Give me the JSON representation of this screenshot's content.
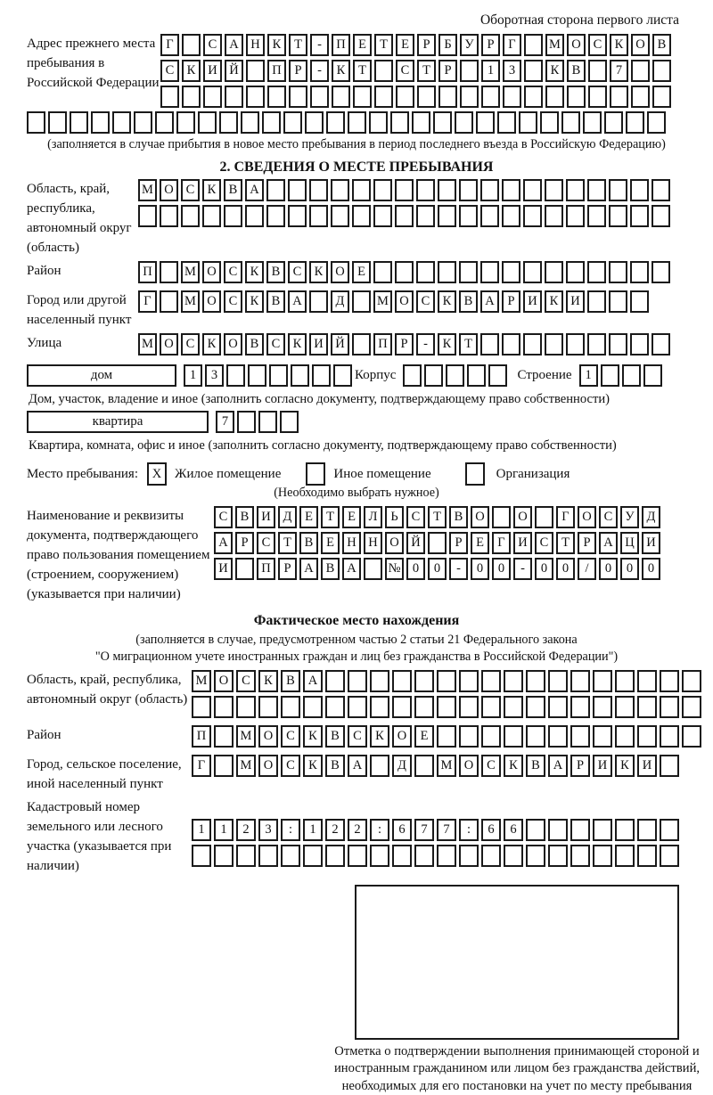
{
  "header": {
    "note": "Оборотная сторона первого листа"
  },
  "prev_address": {
    "label": "Адрес прежнего места пребывания в Российской Федерации",
    "row1": "Г САНКТ-ПЕТЕРБУРГ МОСКОВ",
    "row2": "СКИЙ ПР-КТ СТР 13 КВ 7  ",
    "row3": "                        ",
    "row4": "                              ",
    "note": "(заполняется в случае прибытия в новое место пребывания в период последнего въезда в Российскую Федерацию)"
  },
  "section2": {
    "title": "2. СВЕДЕНИЯ О МЕСТЕ ПРЕБЫВАНИЯ",
    "oblast": {
      "label": "Область, край, республика, автономный округ (область)",
      "row1": "МОСКВА                   ",
      "row2": "                         "
    },
    "raion": {
      "label": "Район",
      "row": "П МОСКВСКОЕ              "
    },
    "gorod": {
      "label": "Город или другой населенный пункт",
      "row": "Г МОСКВА Д МОСКВАРИКИ   "
    },
    "ulitsa": {
      "label": "Улица",
      "row": "МОСКОВСКИЙ ПР-КТ         "
    },
    "dom": {
      "label": "дом",
      "cells": "13      ",
      "korpus_label": "Корпус",
      "korpus_cells": "     ",
      "stroenie_label": "Строение",
      "stroenie_cells": "1   ",
      "note": "Дом, участок, владение и иное (заполнить согласно документу, подтверждающему право собственности)"
    },
    "kvartira": {
      "label": "квартира",
      "cells": "7   ",
      "note": "Квартира, комната, офис и иное (заполнить согласно документу, подтверждающему право собственности)"
    },
    "mesto": {
      "label": "Место пребывания:",
      "options": [
        {
          "mark": "X",
          "label": "Жилое помещение"
        },
        {
          "mark": " ",
          "label": "Иное помещение"
        },
        {
          "mark": " ",
          "label": "Организация"
        }
      ],
      "note": "(Необходимо выбрать нужное)"
    },
    "document": {
      "label": "Наименование и реквизиты документа, подтверждающего право пользования помещением (строением, сооружением) (указывается при наличии)",
      "row1": "СВИДЕТЕЛЬСТВО О ГОСУД",
      "row2": "АРСТВЕННОЙ РЕГИСТРАЦИ",
      "row3": "И ПРАВА №00-00-00/000"
    }
  },
  "fact": {
    "title": "Фактическое место нахождения",
    "note1": "(заполняется в случае, предусмотренном частью 2 статьи 21 Федерального закона",
    "note2": "\"О миграционном учете иностранных граждан и лиц без гражданства в Российской Федерации\")",
    "oblast": {
      "label": "Область, край, республика, автономный округ (область)",
      "row1": "МОСКВА                 ",
      "row2": "                       "
    },
    "raion": {
      "label": "Район",
      "row": "П МОСКВСКОЕ            "
    },
    "gorod": {
      "label": "Город, сельское поселение, иной населенный пункт",
      "row": "Г МОСКВА Д МОСКВАРИКИ "
    },
    "kadastr": {
      "label": "Кадастровый номер земельного или лесного участка (указывается при наличии)",
      "row1": "1123:122:677:66       ",
      "row2": "                      "
    },
    "stamp_note": "Отметка о подтверждении выполнения принимающей стороной и иностранным гражданином или лицом без гражданства действий, необходимых для его постановки на учет по месту пребывания"
  }
}
